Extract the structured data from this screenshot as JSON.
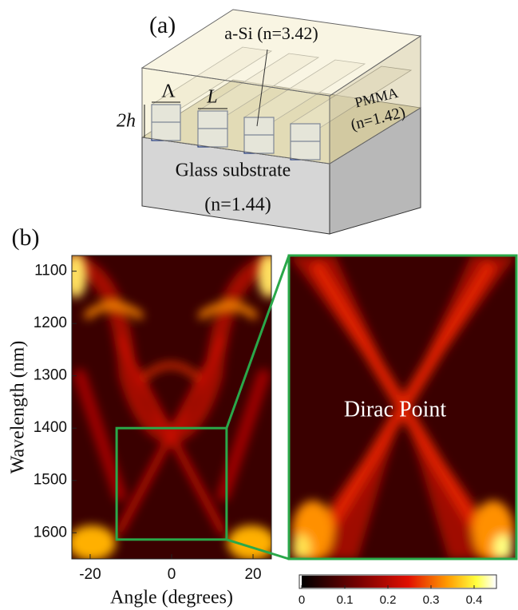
{
  "panel_a": {
    "label": "(a)",
    "asi": "a-Si (n=3.42)",
    "period": "Λ",
    "width": "L",
    "height": "2h",
    "cover": "PMMA",
    "cover_index": "(n=1.42)",
    "substrate": "Glass substrate",
    "substrate_index": "(n=1.44)"
  },
  "panel_b": {
    "label": "(b)",
    "xlabel": "Angle (degrees)",
    "ylabel": "Wavelength (nm)",
    "xlim": [
      -24.5,
      24.5
    ],
    "xticks": [
      -20,
      0,
      20
    ],
    "ylim": [
      1070,
      1650
    ],
    "yticks": [
      1100,
      1200,
      1300,
      1400,
      1500,
      1600
    ],
    "zoom_xlim": [
      -13.5,
      13.5
    ],
    "zoom_ylim": [
      1400,
      1613
    ],
    "annotation": "Dirac Point",
    "colorbar": {
      "lim": [
        0,
        0.45
      ],
      "ticks": [
        0,
        0.1,
        0.2,
        0.3,
        0.4
      ]
    }
  }
}
